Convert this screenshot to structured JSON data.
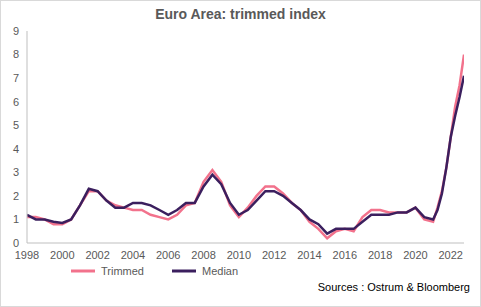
{
  "chart_data": {
    "type": "line",
    "title": "Euro Area: trimmed index",
    "source": "Sources : Ostrum & Bloomberg",
    "x": [
      1998,
      1998.5,
      1999,
      1999.5,
      2000,
      2000.5,
      2001,
      2001.5,
      2002,
      2002.5,
      2003,
      2003.5,
      2004,
      2004.5,
      2005,
      2005.5,
      2006,
      2006.5,
      2007,
      2007.5,
      2008,
      2008.5,
      2009,
      2009.5,
      2010,
      2010.5,
      2011,
      2011.5,
      2012,
      2012.5,
      2013,
      2013.5,
      2014,
      2014.5,
      2015,
      2015.5,
      2016,
      2016.5,
      2017,
      2017.5,
      2018,
      2018.5,
      2019,
      2019.5,
      2020,
      2020.5,
      2021,
      2021.25,
      2021.5,
      2021.75,
      2022,
      2022.25,
      2022.5,
      2022.75
    ],
    "series": [
      {
        "name": "Trimmed",
        "color": "#f2728c",
        "values": [
          1.1,
          1.1,
          1.0,
          0.8,
          0.8,
          1.0,
          1.6,
          2.2,
          2.2,
          1.8,
          1.6,
          1.5,
          1.4,
          1.4,
          1.2,
          1.1,
          1.0,
          1.2,
          1.6,
          1.7,
          2.6,
          3.1,
          2.6,
          1.6,
          1.1,
          1.5,
          2.0,
          2.4,
          2.4,
          2.1,
          1.7,
          1.4,
          0.9,
          0.6,
          0.2,
          0.5,
          0.6,
          0.5,
          1.1,
          1.4,
          1.4,
          1.3,
          1.3,
          1.3,
          1.5,
          1.0,
          0.9,
          1.5,
          2.2,
          3.2,
          4.5,
          5.8,
          6.7,
          8.0
        ]
      },
      {
        "name": "Median",
        "color": "#3b1f5e",
        "values": [
          1.2,
          1.0,
          1.0,
          0.9,
          0.85,
          1.0,
          1.6,
          2.3,
          2.2,
          1.8,
          1.5,
          1.5,
          1.7,
          1.7,
          1.6,
          1.4,
          1.2,
          1.4,
          1.7,
          1.7,
          2.4,
          2.9,
          2.5,
          1.7,
          1.2,
          1.4,
          1.8,
          2.2,
          2.2,
          2.0,
          1.7,
          1.4,
          1.0,
          0.8,
          0.4,
          0.6,
          0.6,
          0.6,
          0.9,
          1.2,
          1.2,
          1.2,
          1.3,
          1.3,
          1.5,
          1.1,
          1.0,
          1.4,
          2.1,
          3.2,
          4.5,
          5.4,
          6.2,
          7.1
        ]
      }
    ],
    "xlim": [
      1998,
      2022.75
    ],
    "xticks": [
      1998,
      2000,
      2002,
      2004,
      2006,
      2008,
      2010,
      2012,
      2014,
      2016,
      2018,
      2020,
      2022
    ],
    "ylim": [
      0,
      9
    ],
    "yticks": [
      0,
      1,
      2,
      3,
      4,
      5,
      6,
      7,
      8,
      9
    ],
    "grid": false,
    "legend": "bottom"
  }
}
